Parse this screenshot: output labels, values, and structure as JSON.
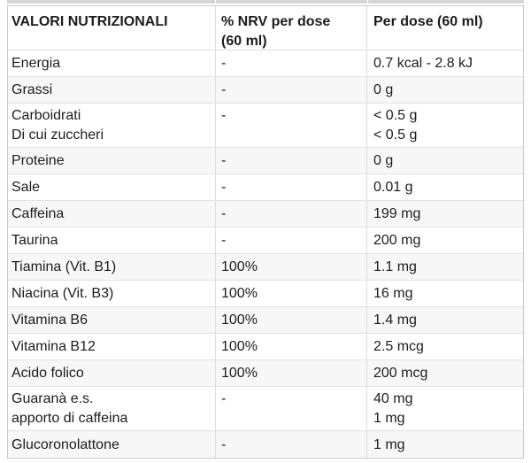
{
  "table": {
    "title": "VALORI NUTRIZIONALI",
    "headers": [
      "VALORI NUTRIZIONALI",
      "% NRV per dose\n(60 ml)",
      "Per dose (60 ml)"
    ],
    "rows": [
      {
        "name": "Energia",
        "nrv": "-",
        "dose": "0.7 kcal - 2.8 kJ"
      },
      {
        "name": "Grassi",
        "nrv": "-",
        "dose": "0 g"
      },
      {
        "name": "Carboidrati\nDi cui zuccheri",
        "nrv": "-",
        "dose": "< 0.5 g\n< 0.5 g"
      },
      {
        "name": "Proteine",
        "nrv": "-",
        "dose": "0 g"
      },
      {
        "name": "Sale",
        "nrv": "-",
        "dose": "0.01 g"
      },
      {
        "name": "Caffeina",
        "nrv": "-",
        "dose": "199 mg"
      },
      {
        "name": "Taurina",
        "nrv": "-",
        "dose": "200 mg"
      },
      {
        "name": "Tiamina (Vit. B1)",
        "nrv": "100%",
        "dose": "1.1 mg"
      },
      {
        "name": "Niacina (Vit. B3)",
        "nrv": "100%",
        "dose": "16 mg"
      },
      {
        "name": "Vitamina B6",
        "nrv": "100%",
        "dose": "1.4 mg"
      },
      {
        "name": "Vitamina B12",
        "nrv": "100%",
        "dose": "2.5 mcg"
      },
      {
        "name": "Acido folico",
        "nrv": "100%",
        "dose": "200 mcg"
      },
      {
        "name": "Guaranà e.s.\napporto di caffeina",
        "nrv": "-",
        "dose": "40 mg\n1 mg"
      },
      {
        "name": "Glucoronolattone",
        "nrv": "-",
        "dose": "1 mg"
      }
    ]
  },
  "colors": {
    "text": "#1c1c1c",
    "border_outer": "#c9c9c9",
    "border_inner": "#e3e3e3",
    "border_column": "#dedede",
    "zebra_row": "#f7f7f7",
    "background": "#ffffff",
    "crop_band": "#d6d6d6"
  }
}
